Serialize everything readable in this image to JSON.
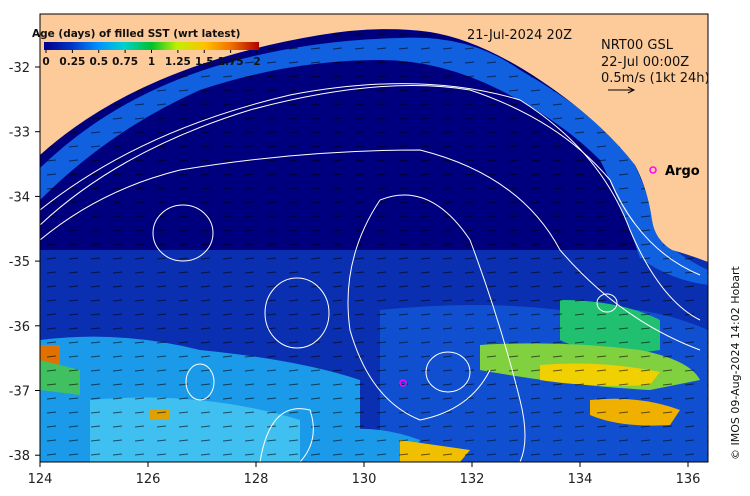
{
  "colorbar": {
    "title": "Age (days) of filled SST (wrt latest)",
    "ticks": [
      "0",
      "0.25",
      "0.5",
      "0.75",
      "1",
      "1.25",
      "1.5",
      "1.75",
      "2"
    ],
    "colors": [
      "#00008b",
      "#0040d0",
      "#0090ff",
      "#00d0e0",
      "#00c060",
      "#40e000",
      "#e0f000",
      "#ffb000",
      "#f07000",
      "#b00000"
    ]
  },
  "header": {
    "date": "21-Jul-2024 20Z",
    "current_source": "NRT00 GSL",
    "current_time": "22-Jul 00:00Z",
    "scale_label": "0.5m/s (1kt 24h)"
  },
  "markers": {
    "argo_label": "Argo",
    "argo_color": "#ff00ff"
  },
  "axes": {
    "x_ticks": [
      "124",
      "126",
      "128",
      "130",
      "132",
      "134",
      "136"
    ],
    "y_ticks": [
      "-32",
      "-33",
      "-34",
      "-35",
      "-36",
      "-37",
      "-38"
    ]
  },
  "copyright": "© IMOS 09-Aug-2024 14:02 Hobart",
  "colors": {
    "land": "#fdca9a",
    "ocean": "#00007f",
    "shelf": "#1060e0"
  }
}
